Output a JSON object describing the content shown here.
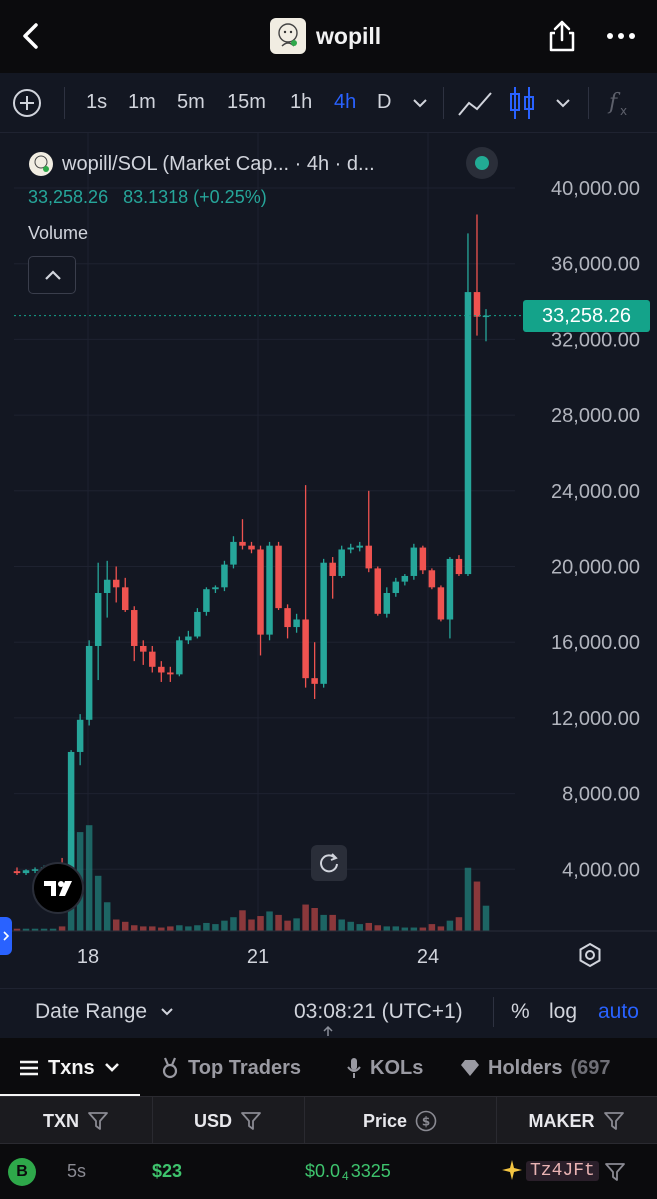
{
  "header": {
    "title": "wopill"
  },
  "toolbar": {
    "timeframes": [
      "1s",
      "1m",
      "5m",
      "15m",
      "1h",
      "4h",
      "D"
    ],
    "active_timeframe": "4h"
  },
  "chart": {
    "legend_title": "wopill/SOL (Market Cap... · 4h · d...",
    "legend_value": "33,258.26",
    "legend_change": "83.1318 (+0.25%)",
    "volume_label": "Volume",
    "last_price": "33,258.26",
    "colors": {
      "up": "#26a69a",
      "down": "#ef5350",
      "bg": "#131722",
      "accent": "#2962ff"
    }
  },
  "chart_data": {
    "type": "candlestick",
    "title": "wopill/SOL (Market Cap... · 4h · d...",
    "y_ticks": [
      "40,000.00",
      "36,000.00",
      "32,000.00",
      "28,000.00",
      "24,000.00",
      "20,000.00",
      "16,000.00",
      "12,000.00",
      "8,000.00",
      "4,000.00"
    ],
    "x_ticks": [
      "18",
      "21",
      "24"
    ],
    "ylim": [
      0,
      40000
    ],
    "log_scale": false,
    "last_price": 33258.26,
    "candles": [
      {
        "o": 3900,
        "h": 4100,
        "l": 3700,
        "c": 3800
      },
      {
        "o": 3800,
        "h": 4000,
        "l": 3700,
        "c": 3950
      },
      {
        "o": 3950,
        "h": 4100,
        "l": 3800,
        "c": 4000
      },
      {
        "o": 4000,
        "h": 4200,
        "l": 3900,
        "c": 4100
      },
      {
        "o": 4100,
        "h": 4350,
        "l": 4000,
        "c": 4250
      },
      {
        "o": 4250,
        "h": 4600,
        "l": 3800,
        "c": 3900
      },
      {
        "o": 3900,
        "h": 10300,
        "l": 3500,
        "c": 10200
      },
      {
        "o": 10200,
        "h": 12200,
        "l": 9500,
        "c": 11900
      },
      {
        "o": 11900,
        "h": 16100,
        "l": 11600,
        "c": 15800
      },
      {
        "o": 15800,
        "h": 20200,
        "l": 14000,
        "c": 18600
      },
      {
        "o": 18600,
        "h": 20300,
        "l": 17300,
        "c": 19300
      },
      {
        "o": 19300,
        "h": 20000,
        "l": 18100,
        "c": 18900
      },
      {
        "o": 18900,
        "h": 19400,
        "l": 17600,
        "c": 17700
      },
      {
        "o": 17700,
        "h": 17900,
        "l": 15000,
        "c": 15800
      },
      {
        "o": 15800,
        "h": 16100,
        "l": 14800,
        "c": 15500
      },
      {
        "o": 15500,
        "h": 15800,
        "l": 14400,
        "c": 14700
      },
      {
        "o": 14700,
        "h": 15000,
        "l": 13900,
        "c": 14400
      },
      {
        "o": 14400,
        "h": 14700,
        "l": 13900,
        "c": 14300
      },
      {
        "o": 14300,
        "h": 16300,
        "l": 14200,
        "c": 16100
      },
      {
        "o": 16100,
        "h": 16600,
        "l": 15900,
        "c": 16300
      },
      {
        "o": 16300,
        "h": 17800,
        "l": 16200,
        "c": 17600
      },
      {
        "o": 17600,
        "h": 18900,
        "l": 17400,
        "c": 18800
      },
      {
        "o": 18800,
        "h": 19000,
        "l": 18600,
        "c": 18900
      },
      {
        "o": 18900,
        "h": 20300,
        "l": 18700,
        "c": 20100
      },
      {
        "o": 20100,
        "h": 21600,
        "l": 19900,
        "c": 21300
      },
      {
        "o": 21300,
        "h": 22500,
        "l": 20900,
        "c": 21100
      },
      {
        "o": 21100,
        "h": 21300,
        "l": 20700,
        "c": 20900
      },
      {
        "o": 20900,
        "h": 21100,
        "l": 15300,
        "c": 16400
      },
      {
        "o": 16400,
        "h": 21300,
        "l": 16100,
        "c": 21100
      },
      {
        "o": 21100,
        "h": 21300,
        "l": 17700,
        "c": 17800
      },
      {
        "o": 17800,
        "h": 18000,
        "l": 16200,
        "c": 16800
      },
      {
        "o": 16800,
        "h": 17500,
        "l": 16500,
        "c": 17200
      },
      {
        "o": 17200,
        "h": 24300,
        "l": 13600,
        "c": 14100
      },
      {
        "o": 14100,
        "h": 16000,
        "l": 13000,
        "c": 13800
      },
      {
        "o": 13800,
        "h": 20400,
        "l": 13600,
        "c": 20200
      },
      {
        "o": 20200,
        "h": 20500,
        "l": 18300,
        "c": 19500
      },
      {
        "o": 19500,
        "h": 21100,
        "l": 19400,
        "c": 20900
      },
      {
        "o": 20900,
        "h": 21200,
        "l": 20700,
        "c": 21000
      },
      {
        "o": 21000,
        "h": 21300,
        "l": 20800,
        "c": 21100
      },
      {
        "o": 21100,
        "h": 24000,
        "l": 19700,
        "c": 19900
      },
      {
        "o": 19900,
        "h": 20000,
        "l": 17400,
        "c": 17500
      },
      {
        "o": 17500,
        "h": 18900,
        "l": 17300,
        "c": 18600
      },
      {
        "o": 18600,
        "h": 19400,
        "l": 18400,
        "c": 19200
      },
      {
        "o": 19200,
        "h": 19600,
        "l": 19000,
        "c": 19500
      },
      {
        "o": 19500,
        "h": 21200,
        "l": 19300,
        "c": 21000
      },
      {
        "o": 21000,
        "h": 21100,
        "l": 19600,
        "c": 19800
      },
      {
        "o": 19800,
        "h": 19900,
        "l": 18800,
        "c": 18900
      },
      {
        "o": 18900,
        "h": 19000,
        "l": 17100,
        "c": 17200
      },
      {
        "o": 17200,
        "h": 20500,
        "l": 16200,
        "c": 20400
      },
      {
        "o": 20400,
        "h": 20600,
        "l": 19500,
        "c": 19600
      },
      {
        "o": 19600,
        "h": 37600,
        "l": 19500,
        "c": 34500
      },
      {
        "o": 34500,
        "h": 38600,
        "l": 32200,
        "c": 33200
      },
      {
        "o": 33200,
        "h": 33600,
        "l": 31900,
        "c": 33258.26
      }
    ],
    "volumes": [
      0.02,
      0.02,
      0.02,
      0.02,
      0.02,
      0.04,
      0.87,
      0.86,
      0.92,
      0.48,
      0.25,
      0.1,
      0.08,
      0.05,
      0.04,
      0.04,
      0.03,
      0.04,
      0.05,
      0.04,
      0.05,
      0.07,
      0.06,
      0.09,
      0.12,
      0.18,
      0.1,
      0.13,
      0.17,
      0.14,
      0.09,
      0.11,
      0.23,
      0.2,
      0.14,
      0.14,
      0.1,
      0.08,
      0.06,
      0.07,
      0.05,
      0.04,
      0.04,
      0.03,
      0.03,
      0.03,
      0.06,
      0.04,
      0.09,
      0.12,
      0.55,
      0.43,
      0.22
    ]
  },
  "controls": {
    "date_range": "Date Range",
    "clock": "03:08:21 (UTC+1)",
    "percent": "%",
    "log": "log",
    "auto": "auto"
  },
  "tabs": {
    "txns": "Txns",
    "top_traders": "Top Traders",
    "kols": "KOLs",
    "holders": "Holders",
    "holders_count": "(697"
  },
  "table": {
    "headers": {
      "txn": "TXN",
      "usd": "USD",
      "price": "Price",
      "maker": "MAKER"
    },
    "rows": [
      {
        "type": "B",
        "age": "5s",
        "usd": "$23",
        "price_prefix": "$0.0",
        "price_zeros": "4",
        "price_digits": "3325",
        "maker": "Tz4JFt"
      }
    ]
  }
}
